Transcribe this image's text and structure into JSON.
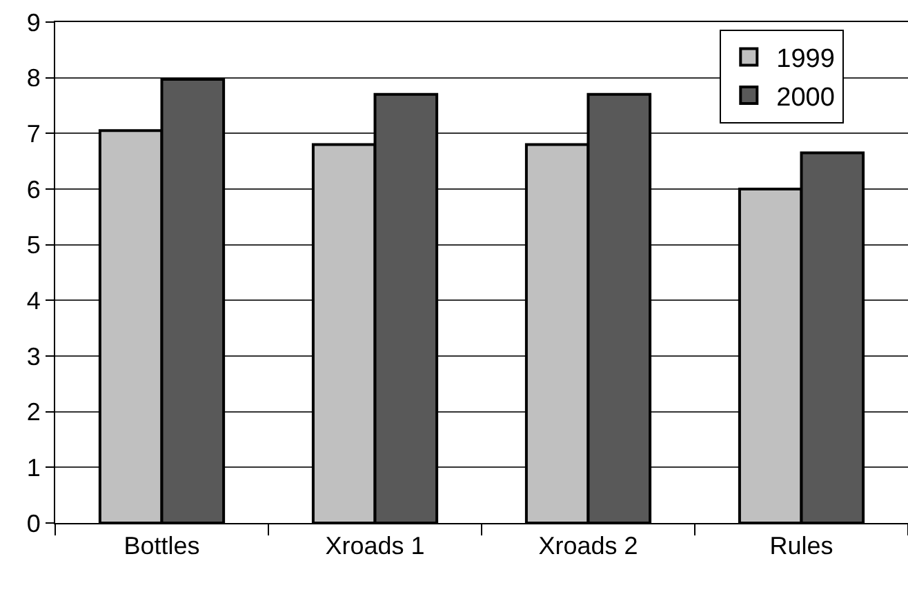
{
  "chart_data": {
    "type": "bar",
    "categories": [
      "Bottles",
      "Xroads 1",
      "Xroads 2",
      "Rules"
    ],
    "series": [
      {
        "name": "1999",
        "color": "#c0c0c0",
        "values": [
          7.05,
          6.8,
          6.8,
          6.0
        ]
      },
      {
        "name": "2000",
        "color": "#595959",
        "values": [
          7.97,
          7.7,
          7.7,
          6.65
        ]
      }
    ],
    "ylim": [
      0,
      9
    ],
    "yticks": [
      0,
      1,
      2,
      3,
      4,
      5,
      6,
      7,
      8,
      9
    ],
    "grid": "y",
    "legend": "top right"
  }
}
